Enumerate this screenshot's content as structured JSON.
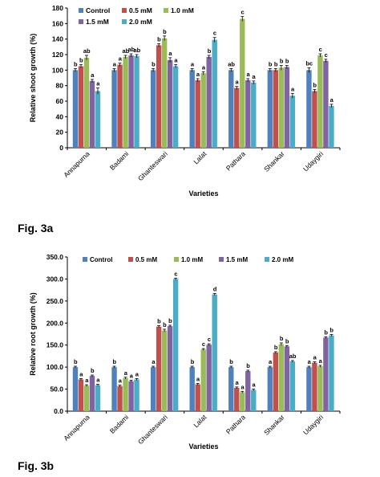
{
  "figure_captions": [
    "Fig. 3a",
    "Fig. 3b"
  ],
  "colors": {
    "Control": "#4f81bd",
    "0.5 mM": "#c0504d",
    "1.0 mM": "#9bbb59",
    "1.5 mM": "#8064a2",
    "2.0 mM": "#4bacc6"
  },
  "chart_data": [
    {
      "type": "bar",
      "xlabel": "Varieties",
      "ylabel": "Relative shoot growth (%)",
      "ylim": [
        0,
        180
      ],
      "yticks": [
        "0",
        "20",
        "40",
        "60",
        "80",
        "100",
        "120",
        "140",
        "160",
        "180"
      ],
      "grid": false,
      "legend_position": "top",
      "categories": [
        "Annapurna",
        "Badami",
        "Ghanteswari",
        "Lalat",
        "Pathara",
        "Shankar",
        "Udaygiri"
      ],
      "series": [
        {
          "name": "Control",
          "values": [
            100,
            100,
            100,
            100,
            100,
            100,
            100
          ],
          "errors": [
            2,
            2,
            2,
            2,
            2,
            2,
            3
          ],
          "labels": [
            "b",
            "a",
            "b",
            "a",
            "ab",
            "b",
            "bc"
          ]
        },
        {
          "name": "0.5 mM",
          "values": [
            105,
            107,
            132,
            87,
            77,
            100,
            73
          ],
          "errors": [
            2,
            2,
            2,
            2,
            2,
            2,
            2
          ],
          "labels": [
            "b",
            "a",
            "b",
            "a",
            "a",
            "b",
            "b"
          ]
        },
        {
          "name": "1.0 mM",
          "values": [
            116,
            117,
            141,
            96,
            166,
            103,
            119
          ],
          "errors": [
            3,
            2,
            3,
            2,
            3,
            3,
            2
          ],
          "labels": [
            "ab",
            "ab",
            "b",
            "a",
            "c",
            "b",
            "c"
          ]
        },
        {
          "name": "1.5 mM",
          "values": [
            86,
            119,
            113,
            117,
            87,
            104,
            112
          ],
          "errors": [
            2,
            2,
            3,
            2,
            2,
            2,
            2
          ],
          "labels": [
            "a",
            "ab",
            "a",
            "b",
            "a",
            "b",
            "c"
          ]
        },
        {
          "name": "2.0 mM",
          "values": [
            73,
            118,
            105,
            139,
            84,
            67,
            54
          ],
          "errors": [
            4,
            2,
            2,
            3,
            2,
            3,
            2
          ],
          "labels": [
            "a",
            "ab",
            "a",
            "c",
            "a",
            "a",
            "a"
          ]
        }
      ]
    },
    {
      "type": "bar",
      "xlabel": "Varieties",
      "ylabel": "Relative root growth (%)",
      "ylim": [
        0,
        350
      ],
      "yticks": [
        "0.0",
        "50.0",
        "100.0",
        "150.0",
        "200.0",
        "250.0",
        "300.0",
        "350.0"
      ],
      "grid": false,
      "legend_position": "top",
      "categories": [
        "Annapurna",
        "Badami",
        "Ghanteswari",
        "Lalat",
        "Pathara",
        "Shankar",
        "Udaygiri"
      ],
      "series": [
        {
          "name": "Control",
          "values": [
            100,
            100,
            100,
            100,
            100,
            100,
            100
          ],
          "errors": [
            2,
            2,
            2,
            2,
            2,
            2,
            2
          ],
          "labels": [
            "b",
            "b",
            "a",
            "b",
            "b",
            "a",
            "a"
          ]
        },
        {
          "name": "0.5 mM",
          "values": [
            72,
            57,
            192,
            61,
            53,
            133,
            110
          ],
          "errors": [
            2,
            2,
            2,
            2,
            2,
            2,
            2
          ],
          "labels": [
            "a",
            "a",
            "b",
            "a",
            "a",
            "b",
            "a"
          ]
        },
        {
          "name": "1.0 mM",
          "values": [
            58,
            75,
            183,
            140,
            43,
            152,
            102
          ],
          "errors": [
            2,
            2,
            3,
            2,
            2,
            3,
            2
          ],
          "labels": [
            "a",
            "a",
            "b",
            "c",
            "a",
            "b",
            "a"
          ]
        },
        {
          "name": "1.5 mM",
          "values": [
            80,
            68,
            193,
            151,
            91,
            147,
            167
          ],
          "errors": [
            2,
            2,
            2,
            2,
            2,
            2,
            2
          ],
          "labels": [
            "b",
            "a",
            "b",
            "c",
            "b",
            "b",
            "b"
          ]
        },
        {
          "name": "2.0 mM",
          "values": [
            59,
            72,
            300,
            265,
            48,
            113,
            172
          ],
          "errors": [
            2,
            2,
            2,
            2,
            2,
            2,
            2
          ],
          "labels": [
            "a",
            "a",
            "c",
            "d",
            "a",
            "ab",
            "b"
          ]
        }
      ]
    }
  ]
}
